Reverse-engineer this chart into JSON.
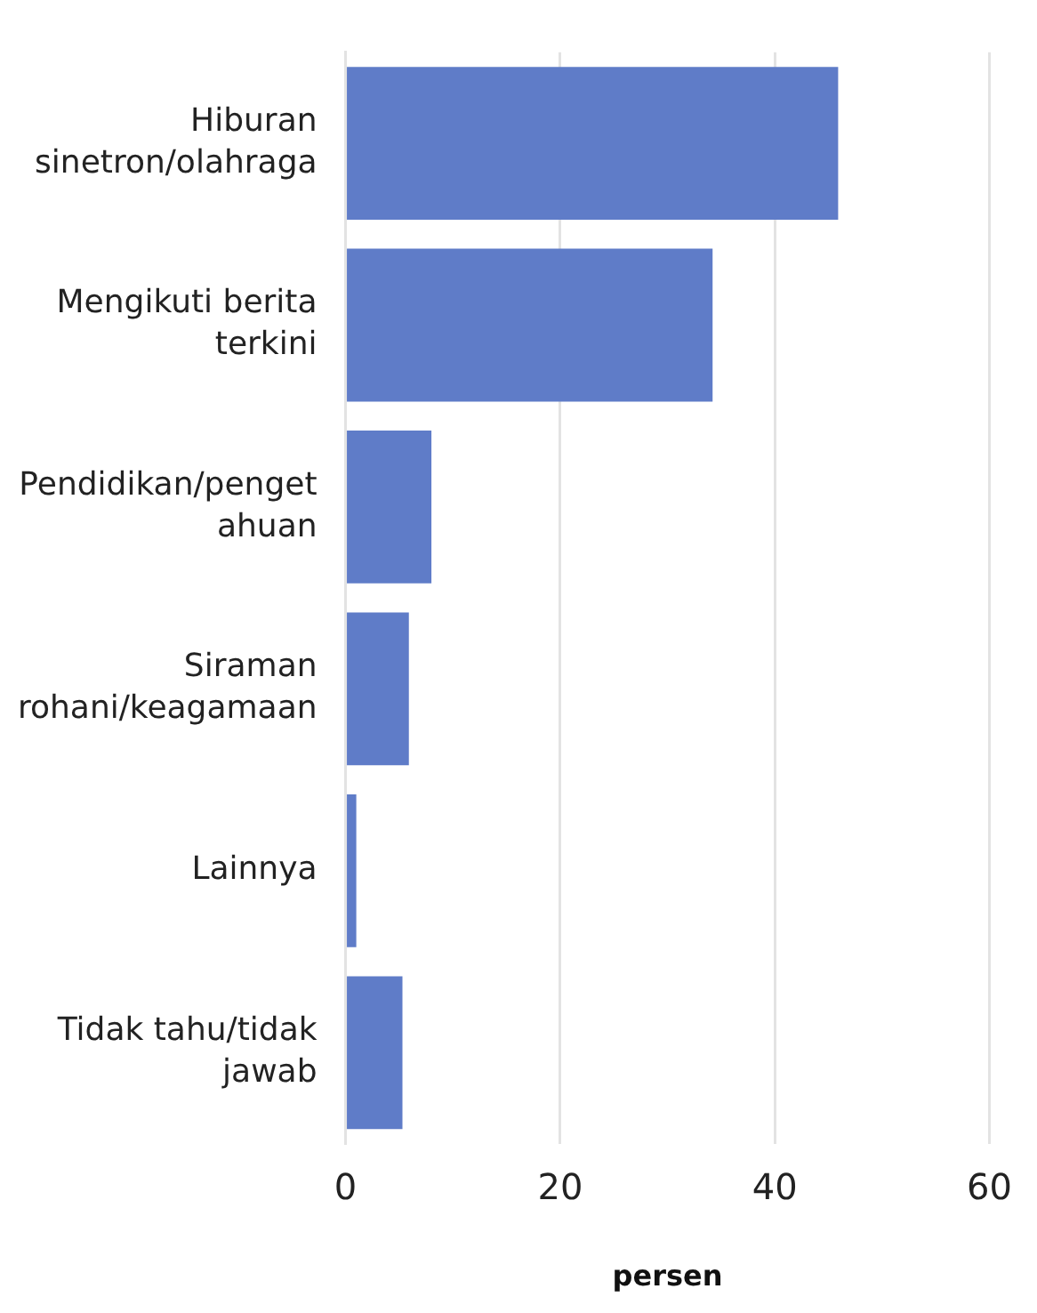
{
  "chart_data": {
    "type": "bar",
    "orientation": "horizontal",
    "xlabel": "persen",
    "categories": [
      "Hiburan sinetron/olahraga",
      "Mengikuti berita terkini",
      "Pendidikan/pengetahuan",
      "Siraman rohani/keagamaan",
      "Lainnya",
      "Tidak tahu/tidak jawab"
    ],
    "values": [
      45.9,
      34.2,
      8.0,
      5.9,
      1.0,
      5.3
    ],
    "color": "#5f7cc8",
    "xlim": [
      0,
      60
    ],
    "xticks": [
      0,
      20,
      40,
      60
    ],
    "grid": "x",
    "legend": false
  }
}
